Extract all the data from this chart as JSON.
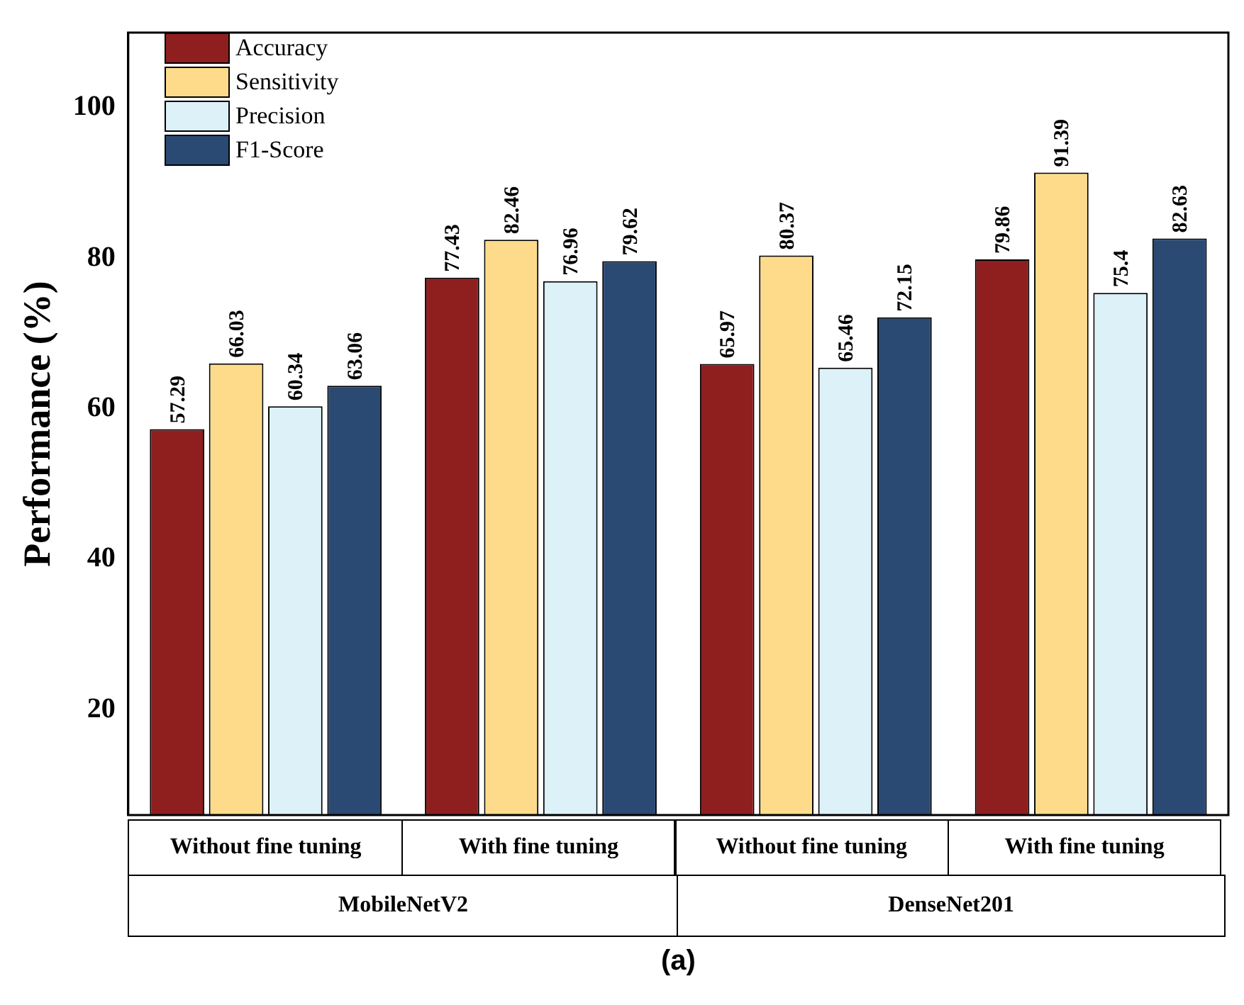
{
  "chart_data": {
    "type": "bar",
    "title": "(a)",
    "ylabel": "Performance (%)",
    "categories": [
      "Without fine tuning",
      "With fine tuning",
      "Without fine tuning",
      "With fine tuning"
    ],
    "annotations": [
      "MobileNetV2",
      "DenseNet201"
    ],
    "series": [
      {
        "name": "Accuracy",
        "color": "#8f1f1f",
        "values": [
          57.29,
          77.43,
          65.97,
          79.86
        ]
      },
      {
        "name": "Sensitivity",
        "color": "#fddb8a",
        "values": [
          66.03,
          82.46,
          80.37,
          91.39
        ]
      },
      {
        "name": "Precision",
        "color": "#dcf1f8",
        "values": [
          60.34,
          76.96,
          65.46,
          75.4
        ]
      },
      {
        "name": "F1-Score",
        "color": "#2b4a73",
        "values": [
          63.06,
          79.62,
          72.15,
          82.63
        ]
      }
    ],
    "ylim": [
      6,
      110
    ],
    "yticks": [
      20,
      40,
      60,
      80,
      100
    ],
    "data_labels": true,
    "legend": "top left",
    "grid": false
  }
}
